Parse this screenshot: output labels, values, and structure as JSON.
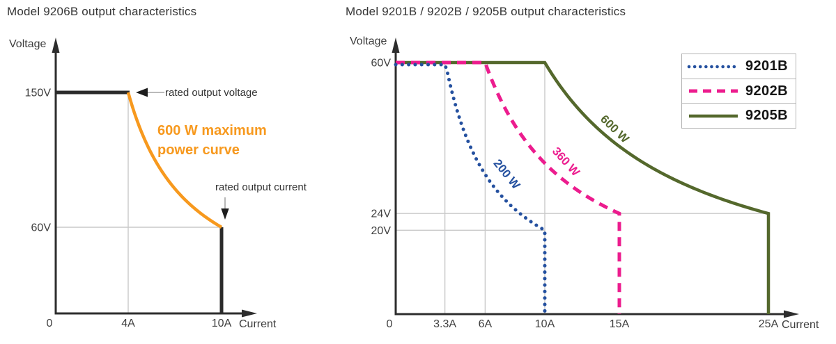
{
  "figure": {
    "background": "#ffffff",
    "grid_color": "#c9c9c9",
    "axis_color": "#2d2d2d"
  },
  "chart_data": [
    {
      "type": "line",
      "title": "Model 9206B output characteristics",
      "xlabel": "Current",
      "ylabel": "Voltage",
      "xlim": [
        0,
        11.6
      ],
      "ylim": [
        0,
        185
      ],
      "x_ticks": [
        {
          "value": 0,
          "label": "0"
        },
        {
          "value": 4,
          "label": "4A"
        },
        {
          "value": 10,
          "label": "10A"
        }
      ],
      "y_ticks": [
        {
          "value": 60,
          "label": "60V"
        },
        {
          "value": 150,
          "label": "150V"
        }
      ],
      "grid": {
        "x_values": [
          4
        ],
        "y_values": [
          60
        ]
      },
      "series": [
        {
          "name": "600 W maximum power curve",
          "power_w": 600,
          "v_rated": 150,
          "i_knee": 4,
          "i_rated": 10,
          "v_at_i_rated": 60,
          "curve_color": "#F7991E",
          "limit_color": "#2b2b2b",
          "dash": "solid",
          "points": [
            [
              0,
              150
            ],
            [
              4,
              150
            ],
            [
              5,
              120
            ],
            [
              6,
              100
            ],
            [
              7.5,
              80
            ],
            [
              8.6,
              70
            ],
            [
              10,
              60
            ],
            [
              10,
              0
            ]
          ]
        }
      ],
      "annotations": {
        "rated_output_voltage": "rated output voltage",
        "rated_output_current": "rated output current",
        "power_curve_label": "600 W maximum\npower curve"
      }
    },
    {
      "type": "line",
      "title": "Model 9201B / 9202B / 9205B output characteristics",
      "xlabel": "Current",
      "ylabel": "Voltage",
      "xlim": [
        0,
        27
      ],
      "ylim": [
        0,
        66
      ],
      "x_ticks": [
        {
          "value": 0,
          "label": "0"
        },
        {
          "value": 3.3,
          "label": "3.3A"
        },
        {
          "value": 6,
          "label": "6A"
        },
        {
          "value": 10,
          "label": "10A"
        },
        {
          "value": 15,
          "label": "15A"
        },
        {
          "value": 25,
          "label": "25A"
        }
      ],
      "y_ticks": [
        {
          "value": 60,
          "label": "60V"
        },
        {
          "value": 24,
          "label": "24V"
        },
        {
          "value": 20,
          "label": "20V"
        }
      ],
      "grid": {
        "x_values": [
          3.3,
          6,
          10
        ],
        "y_segments": [
          {
            "y": 24,
            "x_to": 25
          },
          {
            "y": 20,
            "x_to": 10
          }
        ]
      },
      "legend_position": "top-right",
      "series": [
        {
          "name": "9201B",
          "curve_label": "200 W",
          "power_w": 200,
          "v_max": 60,
          "i_knee": 3.3,
          "i_rated": 10,
          "v_at_i_rated": 20,
          "color": "#24509F",
          "dash": "dotted",
          "points": [
            [
              0,
              60
            ],
            [
              3.3,
              60
            ],
            [
              4,
              50
            ],
            [
              5,
              40
            ],
            [
              6.7,
              30
            ],
            [
              8,
              25
            ],
            [
              10,
              20
            ],
            [
              10,
              0
            ]
          ]
        },
        {
          "name": "9202B",
          "curve_label": "360 W",
          "power_w": 360,
          "v_max": 60,
          "i_knee": 6,
          "i_rated": 15,
          "v_at_i_rated": 24,
          "color": "#EC1C8E",
          "dash": "dashed",
          "points": [
            [
              0,
              60
            ],
            [
              6,
              60
            ],
            [
              8,
              45
            ],
            [
              10,
              36
            ],
            [
              12,
              30
            ],
            [
              15,
              24
            ],
            [
              15,
              0
            ]
          ]
        },
        {
          "name": "9205B",
          "curve_label": "600 W",
          "power_w": 600,
          "v_max": 60,
          "i_knee": 10,
          "i_rated": 25,
          "v_at_i_rated": 24,
          "color": "#54682C",
          "dash": "solid",
          "points": [
            [
              0,
              60
            ],
            [
              10,
              60
            ],
            [
              12,
              50
            ],
            [
              15,
              40
            ],
            [
              20,
              30
            ],
            [
              25,
              24
            ],
            [
              25,
              0
            ]
          ]
        }
      ]
    }
  ]
}
